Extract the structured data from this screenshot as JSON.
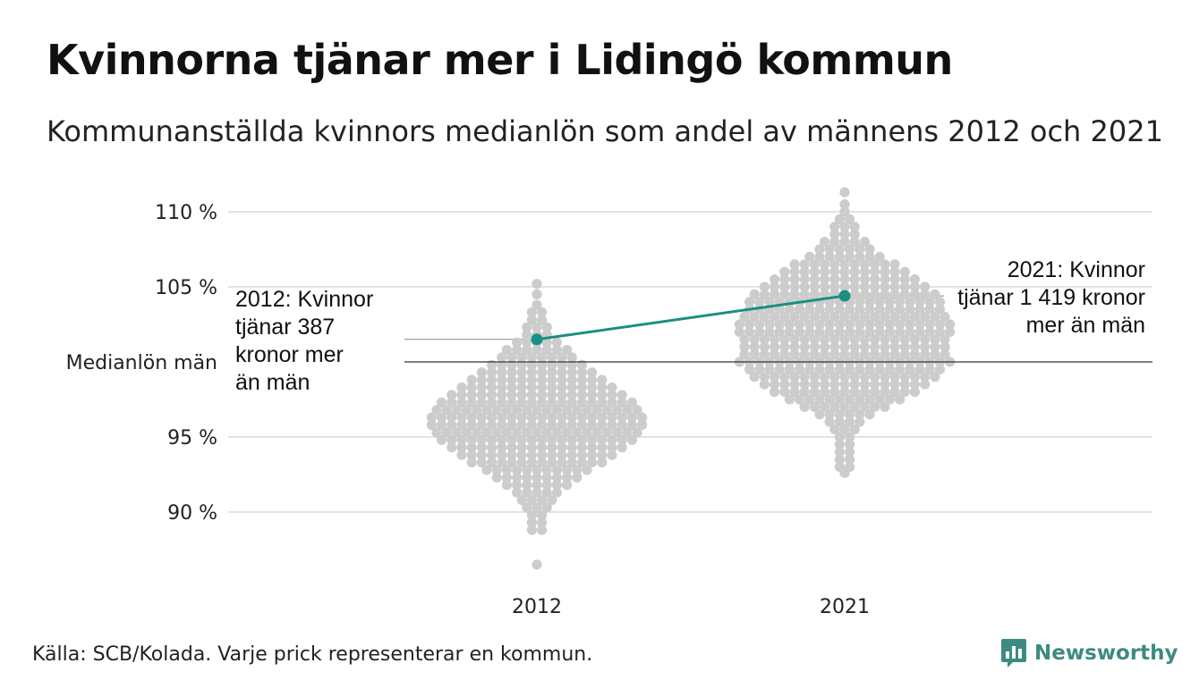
{
  "title": "Kvinnorna tjänar mer i Lidingö kommun",
  "subtitle": "Kommunanställda kvinnors medianlön som andel av männens 2012 och 2021",
  "source": "Källa: SCB/Kolada. Varje prick representerar en kommun.",
  "brand": {
    "name": "Newsworthy",
    "icon": "bar-chart-speech-icon"
  },
  "colors": {
    "dots": "#cccccc",
    "highlight": "#1a8f84",
    "gridline": "#e3e3e3",
    "reference_line": "#333333",
    "annotation_line": "#888888",
    "brand": "#3d8b80"
  },
  "chart_data": {
    "type": "scatter",
    "subtype": "beeswarm",
    "categories": [
      "2012",
      "2021"
    ],
    "y_ticks": [
      {
        "value": 110,
        "label": "110 %"
      },
      {
        "value": 105,
        "label": "105 %"
      },
      {
        "value": 100,
        "label": "Medianlön män"
      },
      {
        "value": 95,
        "label": "95 %"
      },
      {
        "value": 90,
        "label": "90 %"
      }
    ],
    "reference_line": {
      "value": 100,
      "label": "Medianlön män"
    },
    "grid": true,
    "beeswarm_spread": [
      {
        "category": "2012",
        "distribution_bins": [
          {
            "y": 105.2,
            "count": 1
          },
          {
            "y": 104.5,
            "count": 1
          },
          {
            "y": 103.8,
            "count": 1
          },
          {
            "y": 103.3,
            "count": 2
          },
          {
            "y": 102.8,
            "count": 2
          },
          {
            "y": 102.3,
            "count": 3
          },
          {
            "y": 101.8,
            "count": 3
          },
          {
            "y": 101.3,
            "count": 5
          },
          {
            "y": 100.8,
            "count": 7
          },
          {
            "y": 100.3,
            "count": 8
          },
          {
            "y": 99.8,
            "count": 10
          },
          {
            "y": 99.3,
            "count": 12
          },
          {
            "y": 98.8,
            "count": 14
          },
          {
            "y": 98.3,
            "count": 16
          },
          {
            "y": 97.8,
            "count": 18
          },
          {
            "y": 97.3,
            "count": 20
          },
          {
            "y": 96.8,
            "count": 21
          },
          {
            "y": 96.3,
            "count": 22
          },
          {
            "y": 95.8,
            "count": 22
          },
          {
            "y": 95.3,
            "count": 21
          },
          {
            "y": 94.8,
            "count": 20
          },
          {
            "y": 94.3,
            "count": 18
          },
          {
            "y": 93.8,
            "count": 16
          },
          {
            "y": 93.3,
            "count": 14
          },
          {
            "y": 92.8,
            "count": 11
          },
          {
            "y": 92.3,
            "count": 9
          },
          {
            "y": 91.8,
            "count": 7
          },
          {
            "y": 91.3,
            "count": 5
          },
          {
            "y": 90.8,
            "count": 4
          },
          {
            "y": 90.3,
            "count": 3
          },
          {
            "y": 89.8,
            "count": 2
          },
          {
            "y": 89.3,
            "count": 2
          },
          {
            "y": 88.8,
            "count": 2
          },
          {
            "y": 86.5,
            "count": 1
          }
        ]
      },
      {
        "category": "2021",
        "distribution_bins": [
          {
            "y": 111.3,
            "count": 1
          },
          {
            "y": 110.5,
            "count": 1
          },
          {
            "y": 110.0,
            "count": 1
          },
          {
            "y": 109.5,
            "count": 2
          },
          {
            "y": 109.0,
            "count": 3
          },
          {
            "y": 108.5,
            "count": 3
          },
          {
            "y": 108.0,
            "count": 5
          },
          {
            "y": 107.5,
            "count": 6
          },
          {
            "y": 107.0,
            "count": 8
          },
          {
            "y": 106.5,
            "count": 11
          },
          {
            "y": 106.0,
            "count": 13
          },
          {
            "y": 105.5,
            "count": 15
          },
          {
            "y": 105.0,
            "count": 17
          },
          {
            "y": 104.5,
            "count": 19
          },
          {
            "y": 104.0,
            "count": 20
          },
          {
            "y": 103.5,
            "count": 20
          },
          {
            "y": 103.0,
            "count": 21
          },
          {
            "y": 102.5,
            "count": 22
          },
          {
            "y": 102.0,
            "count": 22
          },
          {
            "y": 101.5,
            "count": 21
          },
          {
            "y": 101.0,
            "count": 21
          },
          {
            "y": 100.5,
            "count": 21
          },
          {
            "y": 100.0,
            "count": 22
          },
          {
            "y": 99.5,
            "count": 20
          },
          {
            "y": 99.0,
            "count": 19
          },
          {
            "y": 98.5,
            "count": 17
          },
          {
            "y": 98.0,
            "count": 15
          },
          {
            "y": 97.5,
            "count": 12
          },
          {
            "y": 97.0,
            "count": 9
          },
          {
            "y": 96.5,
            "count": 6
          },
          {
            "y": 96.0,
            "count": 4
          },
          {
            "y": 95.5,
            "count": 3
          },
          {
            "y": 95.0,
            "count": 2
          },
          {
            "y": 94.5,
            "count": 2
          },
          {
            "y": 94.0,
            "count": 2
          },
          {
            "y": 93.5,
            "count": 2
          },
          {
            "y": 93.0,
            "count": 2
          },
          {
            "y": 92.6,
            "count": 1
          }
        ]
      }
    ],
    "highlight_series": {
      "values": [
        {
          "x": "2012",
          "y": 101.5
        },
        {
          "x": "2021",
          "y": 104.4
        }
      ]
    },
    "annotations": [
      {
        "x": "2012",
        "y": 101.5,
        "lines": [
          "2012: Kvinnor",
          "tjänar 387",
          "kronor mer",
          "än män"
        ]
      },
      {
        "x": "2021",
        "y": 104.4,
        "lines": [
          "2021: Kvinnor",
          "tjänar 1 419 kronor",
          "mer än män"
        ]
      }
    ]
  }
}
